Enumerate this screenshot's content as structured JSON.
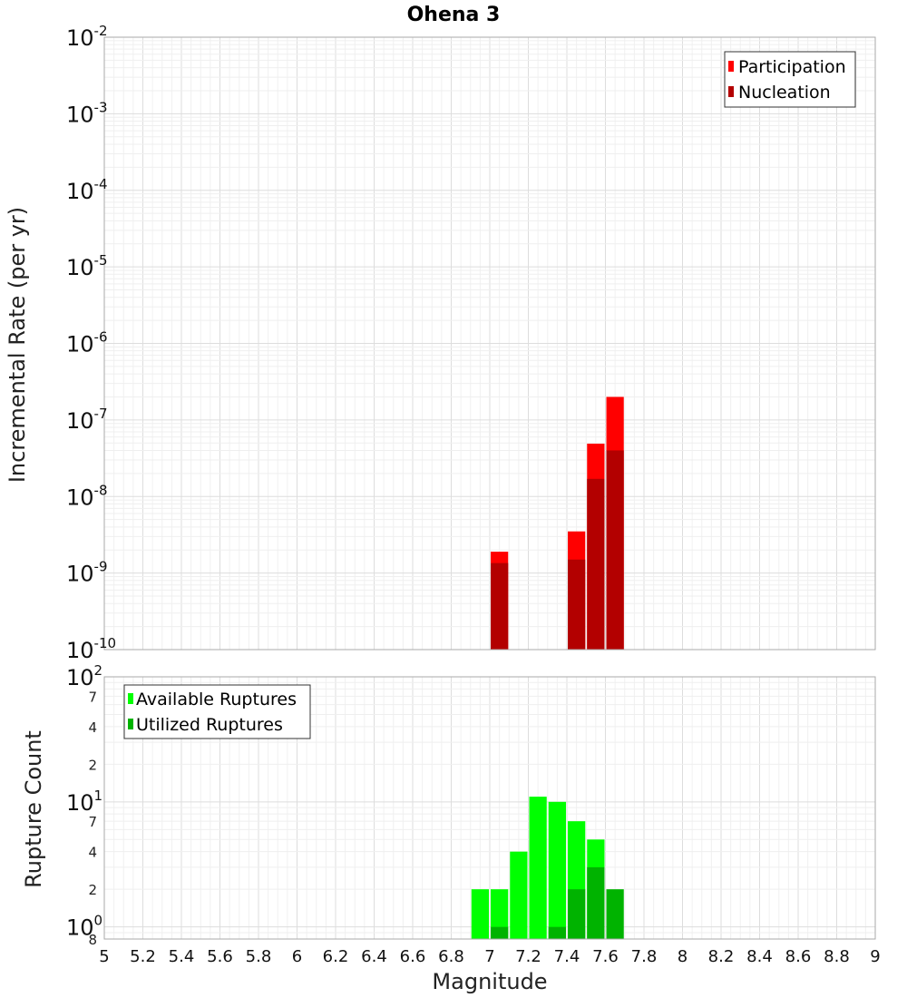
{
  "chart_data": [
    {
      "type": "bar",
      "title": "Ohena 3",
      "ylabel": "Incremental Rate (per yr)",
      "xlabel": "",
      "yscale": "log",
      "ylim": [
        1e-10,
        0.01
      ],
      "xlim": [
        5,
        9
      ],
      "y_ticks": [
        {
          "base": "10",
          "exp": "-2"
        },
        {
          "base": "10",
          "exp": "-3"
        },
        {
          "base": "10",
          "exp": "-4"
        },
        {
          "base": "10",
          "exp": "-5"
        },
        {
          "base": "10",
          "exp": "-6"
        },
        {
          "base": "10",
          "exp": "-7"
        },
        {
          "base": "10",
          "exp": "-8"
        },
        {
          "base": "10",
          "exp": "-9"
        },
        {
          "base": "10",
          "exp": "-10"
        }
      ],
      "legend": {
        "position": "top-right",
        "entries": [
          {
            "name": "Participation",
            "color": "#ff0000"
          },
          {
            "name": "Nucleation",
            "color": "#b30000"
          }
        ]
      },
      "series": [
        {
          "name": "Participation",
          "color": "#ff0000",
          "x": [
            7.05,
            7.45,
            7.55,
            7.65
          ],
          "values": [
            1.9e-09,
            3.5e-09,
            4.9e-08,
            2e-07
          ]
        },
        {
          "name": "Nucleation",
          "color": "#b30000",
          "x": [
            7.05,
            7.45,
            7.55,
            7.65
          ],
          "values": [
            1.35e-09,
            1.5e-09,
            1.7e-08,
            4e-08
          ]
        }
      ]
    },
    {
      "type": "bar",
      "title": "",
      "ylabel": "Rupture Count",
      "xlabel": "Magnitude",
      "yscale": "log",
      "ylim": [
        0.8,
        100
      ],
      "xlim": [
        5,
        9
      ],
      "x_ticks": [
        "5",
        "5.2",
        "5.4",
        "5.6",
        "5.8",
        "6",
        "6.2",
        "6.4",
        "6.6",
        "6.8",
        "7",
        "7.2",
        "7.4",
        "7.6",
        "7.8",
        "8",
        "8.2",
        "8.4",
        "8.6",
        "8.8",
        "9"
      ],
      "y_major_ticks": [
        {
          "value": 100,
          "base": "10",
          "exp": "2"
        },
        {
          "value": 10,
          "base": "10",
          "exp": "1"
        },
        {
          "value": 1,
          "base": "10",
          "exp": "0"
        }
      ],
      "y_minor_ticks": [
        {
          "value": 70,
          "label": "7"
        },
        {
          "value": 40,
          "label": "4"
        },
        {
          "value": 20,
          "label": "2"
        },
        {
          "value": 7,
          "label": "7"
        },
        {
          "value": 4,
          "label": "4"
        },
        {
          "value": 2,
          "label": "2"
        },
        {
          "value": 0.8,
          "label": "8"
        }
      ],
      "legend": {
        "position": "top-left",
        "entries": [
          {
            "name": "Available Ruptures",
            "color": "#00ff00"
          },
          {
            "name": "Utilized Ruptures",
            "color": "#00b300"
          }
        ]
      },
      "series": [
        {
          "name": "Available Ruptures",
          "color": "#00ff00",
          "x": [
            6.95,
            7.05,
            7.15,
            7.25,
            7.35,
            7.45,
            7.55,
            7.65
          ],
          "values": [
            2,
            2,
            4,
            11,
            10,
            7,
            5,
            0
          ]
        },
        {
          "name": "Utilized Ruptures",
          "color": "#00b300",
          "x": [
            7.05,
            7.35,
            7.45,
            7.55,
            7.65
          ],
          "values": [
            1,
            1,
            2,
            3,
            2
          ]
        }
      ]
    }
  ]
}
